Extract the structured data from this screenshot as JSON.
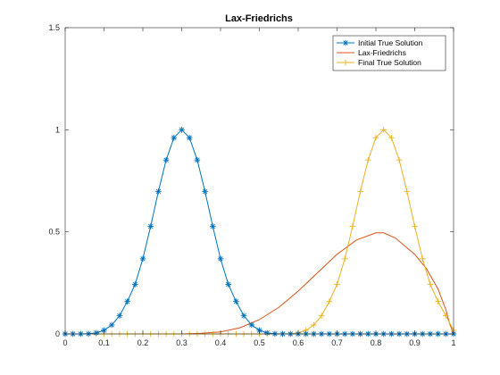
{
  "chart_data": {
    "type": "line",
    "title": "Lax-Friedrichs",
    "xlabel": "",
    "ylabel": "",
    "xlim": [
      0,
      1
    ],
    "ylim": [
      0,
      1.5
    ],
    "xticks": [
      0,
      0.1,
      0.2,
      0.3,
      0.4,
      0.5,
      0.6,
      0.7,
      0.8,
      0.9,
      1
    ],
    "xtick_labels": [
      "0",
      "0.1",
      "0.2",
      "0.3",
      "0.4",
      "0.5",
      "0.6",
      "0.7",
      "0.8",
      "0.9",
      "1"
    ],
    "yticks": [
      0,
      0.5,
      1,
      1.5
    ],
    "ytick_labels": [
      "0",
      "0.5",
      "1",
      "1.5"
    ],
    "grid": false,
    "legend_position": "top-right",
    "series": [
      {
        "name": "Initial True Solution",
        "color": "#0072BD",
        "marker": "asterisk",
        "x": [
          0,
          0.02,
          0.04,
          0.06,
          0.08,
          0.1,
          0.12,
          0.14,
          0.16,
          0.18,
          0.2,
          0.22,
          0.24,
          0.26,
          0.28,
          0.3,
          0.32,
          0.34,
          0.36,
          0.38,
          0.4,
          0.42,
          0.44,
          0.46,
          0.48,
          0.5,
          0.52,
          0.54,
          0.56,
          0.58,
          0.6,
          0.62,
          0.64,
          0.66,
          0.68,
          0.7,
          0.72,
          0.74,
          0.76,
          0.78,
          0.8,
          0.82,
          0.84,
          0.86,
          0.88,
          0.9,
          0.92,
          0.94,
          0.96,
          0.98,
          1
        ],
        "y": [
          0,
          0,
          0,
          0.001,
          0.005,
          0.018,
          0.044,
          0.089,
          0.159,
          0.243,
          0.368,
          0.527,
          0.698,
          0.852,
          0.961,
          1,
          0.961,
          0.852,
          0.698,
          0.527,
          0.368,
          0.243,
          0.159,
          0.089,
          0.044,
          0.018,
          0.005,
          0.001,
          0,
          0,
          0,
          0,
          0,
          0,
          0,
          0,
          0,
          0,
          0,
          0,
          0,
          0,
          0,
          0,
          0,
          0,
          0,
          0,
          0,
          0,
          0
        ]
      },
      {
        "name": "Lax-Friedrichs",
        "color": "#D95319",
        "marker": "none",
        "x": [
          0,
          0.3,
          0.35,
          0.4,
          0.45,
          0.5,
          0.55,
          0.6,
          0.65,
          0.7,
          0.75,
          0.8,
          0.82,
          0.85,
          0.9,
          0.93,
          0.96,
          0.98,
          0.99,
          1
        ],
        "y": [
          0,
          0,
          0.003,
          0.01,
          0.03,
          0.07,
          0.13,
          0.21,
          0.3,
          0.39,
          0.46,
          0.495,
          0.495,
          0.47,
          0.39,
          0.32,
          0.22,
          0.12,
          0.05,
          0
        ]
      },
      {
        "name": "Final True Solution",
        "color": "#EDB120",
        "marker": "plus",
        "x": [
          0,
          0.02,
          0.04,
          0.06,
          0.08,
          0.1,
          0.12,
          0.14,
          0.16,
          0.18,
          0.2,
          0.22,
          0.24,
          0.26,
          0.28,
          0.3,
          0.32,
          0.34,
          0.36,
          0.38,
          0.4,
          0.42,
          0.44,
          0.46,
          0.48,
          0.5,
          0.52,
          0.54,
          0.56,
          0.58,
          0.6,
          0.62,
          0.64,
          0.66,
          0.68,
          0.7,
          0.72,
          0.74,
          0.76,
          0.78,
          0.8,
          0.82,
          0.84,
          0.86,
          0.88,
          0.9,
          0.92,
          0.94,
          0.96,
          0.98,
          1
        ],
        "y": [
          0,
          0,
          0,
          0,
          0,
          0,
          0,
          0,
          0,
          0,
          0,
          0,
          0,
          0,
          0,
          0,
          0,
          0,
          0,
          0,
          0,
          0,
          0,
          0,
          0,
          0,
          0,
          0,
          0,
          0.001,
          0.005,
          0.018,
          0.044,
          0.089,
          0.159,
          0.243,
          0.368,
          0.527,
          0.698,
          0.852,
          0.961,
          1,
          0.961,
          0.852,
          0.698,
          0.527,
          0.368,
          0.243,
          0.159,
          0.089,
          0.018
        ]
      }
    ]
  }
}
